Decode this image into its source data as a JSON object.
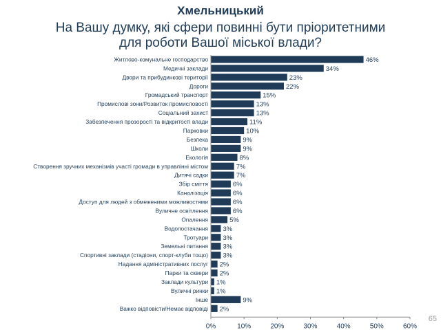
{
  "header": {
    "city": "Хмельницький",
    "question_line1": "На Вашу думку, які сфери повинні бути пріоритетними",
    "question_line2": "для роботи Вашої міської влади?"
  },
  "page_number": "65",
  "colors": {
    "bar": "#1f3b57",
    "text": "#1f3b57",
    "axis": "#888888"
  },
  "chart_data": {
    "type": "bar",
    "orientation": "horizontal",
    "title": "На Вашу думку, які сфери повинні бути пріоритетними для роботи Вашої міської влади?",
    "categories": [
      "Житлово-комунальне господарство",
      "Медичні заклади",
      "Двори та прибудинкові території",
      "Дороги",
      "Громадський транспорт",
      "Промислові зони/Розвиток промисловості",
      "Соціальний захист",
      "Забезпечення прозорості та відкритості влади",
      "Парковки",
      "Безпека",
      "Школи",
      "Екологія",
      "Створення зручних механізмів участі громади в управлінні містом",
      "Дитячі садки",
      "Збір сміття",
      "Каналізація",
      "Доступ для людей з обмеженими можливостями",
      "Вуличне освітлення",
      "Опалення",
      "Водопостачання",
      "Тротуари",
      "Земельні питання",
      "Спортивні заклади (стадіони, спорт-клуби тощо)",
      "Надання адміністративних послуг",
      "Парки та сквери",
      "Заклади культури",
      "Вуличні ринки",
      "Інше",
      "Важко відповісти/Немає відповіді"
    ],
    "values": [
      46,
      34,
      23,
      22,
      15,
      13,
      13,
      11,
      10,
      9,
      9,
      8,
      7,
      7,
      6,
      6,
      6,
      6,
      5,
      3,
      3,
      3,
      3,
      2,
      2,
      1,
      1,
      9,
      2
    ],
    "value_labels": [
      "46%",
      "34%",
      "23%",
      "22%",
      "15%",
      "13%",
      "13%",
      "11%",
      "10%",
      "9%",
      "9%",
      "8%",
      "7%",
      "7%",
      "6%",
      "6%",
      "6%",
      "6%",
      "5%",
      "3%",
      "3%",
      "3%",
      "3%",
      "2%",
      "2%",
      "1%",
      "1%",
      "9%",
      "2%"
    ],
    "x_ticks": [
      "0%",
      "10%",
      "20%",
      "30%",
      "40%",
      "50%",
      "60%"
    ],
    "xlim": [
      0,
      60
    ],
    "grid": false,
    "legend": "none"
  }
}
